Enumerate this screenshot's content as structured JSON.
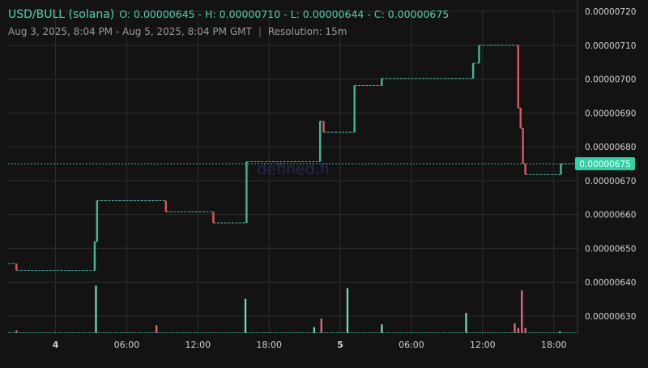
{
  "header": {
    "pair": "USD/BULL (solana)",
    "ohlc": "O: 0.00000645 - H: 0.00000710 - L: 0.00000644 - C: 0.00000675",
    "range": "Aug 3, 2025, 8:04 PM - Aug 5, 2025, 8:04 PM GMT",
    "separator": "|",
    "resolution": "Resolution: 15m"
  },
  "watermark": "defined.fi",
  "colors": {
    "background": "#131313",
    "grid": "#2c2c2c",
    "up": "#3fb8a0",
    "down": "#e2545e",
    "text": "#d0d0d0",
    "price_tag": "#2bd4a4"
  },
  "chart_data": {
    "type": "line",
    "style": "step",
    "y_axis": {
      "ticks": [
        "0.00000630",
        "0.00000640",
        "0.00000650",
        "0.00000660",
        "0.00000670",
        "0.00000680",
        "0.00000690",
        "0.00000700",
        "0.00000710",
        "0.00000720"
      ],
      "range": [
        6.247e-06,
        7.205e-06
      ],
      "position": "right"
    },
    "x_axis": {
      "tick_labels": [
        "4",
        "06:00",
        "12:00",
        "18:00",
        "5",
        "06:00",
        "12:00",
        "18:00"
      ],
      "tick_hours": [
        4,
        10,
        16,
        22,
        28,
        34,
        40,
        46
      ],
      "range_hours": [
        0,
        48
      ],
      "range_label": "Aug 3, 2025 20:04 GMT - Aug 5, 2025 20:04 GMT"
    },
    "current_price": {
      "value": 6.75e-06,
      "label": "0.00000675"
    },
    "grid": true,
    "series": [
      {
        "points": [
          {
            "t": 0.0,
            "v": 6.455e-06
          },
          {
            "t": 0.7,
            "v": 6.435e-06
          },
          {
            "t": 7.3,
            "v": 6.52e-06
          },
          {
            "t": 7.5,
            "v": 6.641e-06
          },
          {
            "t": 13.3,
            "v": 6.608e-06
          },
          {
            "t": 17.3,
            "v": 6.575e-06
          },
          {
            "t": 20.1,
            "v": 6.756e-06
          },
          {
            "t": 26.3,
            "v": 6.876e-06
          },
          {
            "t": 26.6,
            "v": 6.843e-06
          },
          {
            "t": 29.2,
            "v": 6.981e-06
          },
          {
            "t": 31.5,
            "v": 7.002e-06
          },
          {
            "t": 39.2,
            "v": 7.047e-06
          },
          {
            "t": 39.7,
            "v": 7.1e-06
          },
          {
            "t": 43.0,
            "v": 6.915e-06
          },
          {
            "t": 43.2,
            "v": 6.855e-06
          },
          {
            "t": 43.4,
            "v": 6.75e-06
          },
          {
            "t": 43.6,
            "v": 6.718e-06
          },
          {
            "t": 46.6,
            "v": 6.75e-06
          }
        ]
      }
    ],
    "volume": [
      {
        "t": 0.7,
        "v": 0.05,
        "dir": "down"
      },
      {
        "t": 7.4,
        "v": 1.0,
        "dir": "up"
      },
      {
        "t": 12.5,
        "v": 0.16,
        "dir": "down"
      },
      {
        "t": 20.0,
        "v": 0.72,
        "dir": "up"
      },
      {
        "t": 25.8,
        "v": 0.12,
        "dir": "up"
      },
      {
        "t": 26.4,
        "v": 0.3,
        "dir": "down"
      },
      {
        "t": 28.6,
        "v": 0.95,
        "dir": "up"
      },
      {
        "t": 31.5,
        "v": 0.18,
        "dir": "up"
      },
      {
        "t": 38.6,
        "v": 0.42,
        "dir": "up"
      },
      {
        "t": 42.7,
        "v": 0.2,
        "dir": "down"
      },
      {
        "t": 43.0,
        "v": 0.1,
        "dir": "down"
      },
      {
        "t": 43.3,
        "v": 0.9,
        "dir": "down"
      },
      {
        "t": 43.6,
        "v": 0.1,
        "dir": "down"
      },
      {
        "t": 46.5,
        "v": 0.03,
        "dir": "up"
      }
    ]
  }
}
